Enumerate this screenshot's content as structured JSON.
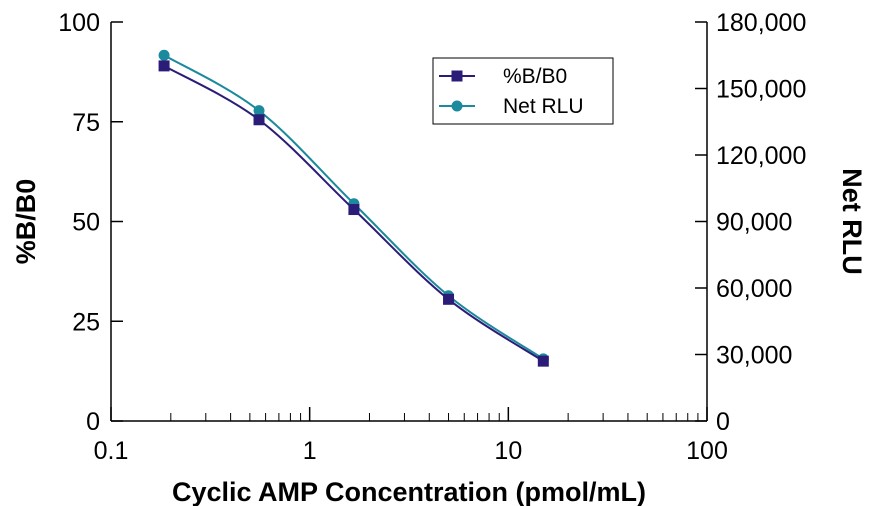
{
  "chart_data": {
    "type": "line",
    "xlabel": "Cyclic AMP Concentration (pmol/mL)",
    "ylabel": "%B/B0",
    "y2label": "Net RLU",
    "x_scale": "log",
    "xlim": [
      0.1,
      100
    ],
    "ylim": [
      0,
      100
    ],
    "y2lim": [
      0,
      180000
    ],
    "x_ticks": [
      {
        "value": 0.1,
        "label": "0.1"
      },
      {
        "value": 1,
        "label": "1"
      },
      {
        "value": 10,
        "label": "10"
      },
      {
        "value": 100,
        "label": "100"
      }
    ],
    "y_ticks": [
      {
        "value": 0,
        "label": "0"
      },
      {
        "value": 25,
        "label": "25"
      },
      {
        "value": 50,
        "label": "50"
      },
      {
        "value": 75,
        "label": "75"
      },
      {
        "value": 100,
        "label": "100"
      }
    ],
    "y2_ticks": [
      {
        "value": 0,
        "label": "0"
      },
      {
        "value": 30000,
        "label": "30,000"
      },
      {
        "value": 60000,
        "label": "60,000"
      },
      {
        "value": 90000,
        "label": "90,000"
      },
      {
        "value": 120000,
        "label": "120,000"
      },
      {
        "value": 150000,
        "label": "150,000"
      },
      {
        "value": 180000,
        "label": "180,000"
      }
    ],
    "grid": false,
    "legend_position": "top-right",
    "series": [
      {
        "name": "%B/B0",
        "axis": "left",
        "marker": "square",
        "color": "#2b1d77",
        "x": [
          0.185,
          0.556,
          1.67,
          5.0,
          15.0
        ],
        "y": [
          89.0,
          75.5,
          53.0,
          30.5,
          15.0
        ]
      },
      {
        "name": "Net RLU",
        "axis": "right",
        "marker": "circle",
        "color": "#1b8a9c",
        "x": [
          0.185,
          0.556,
          1.67,
          5.0,
          15.0
        ],
        "y": [
          165000,
          140000,
          98000,
          56500,
          28000
        ]
      }
    ]
  }
}
